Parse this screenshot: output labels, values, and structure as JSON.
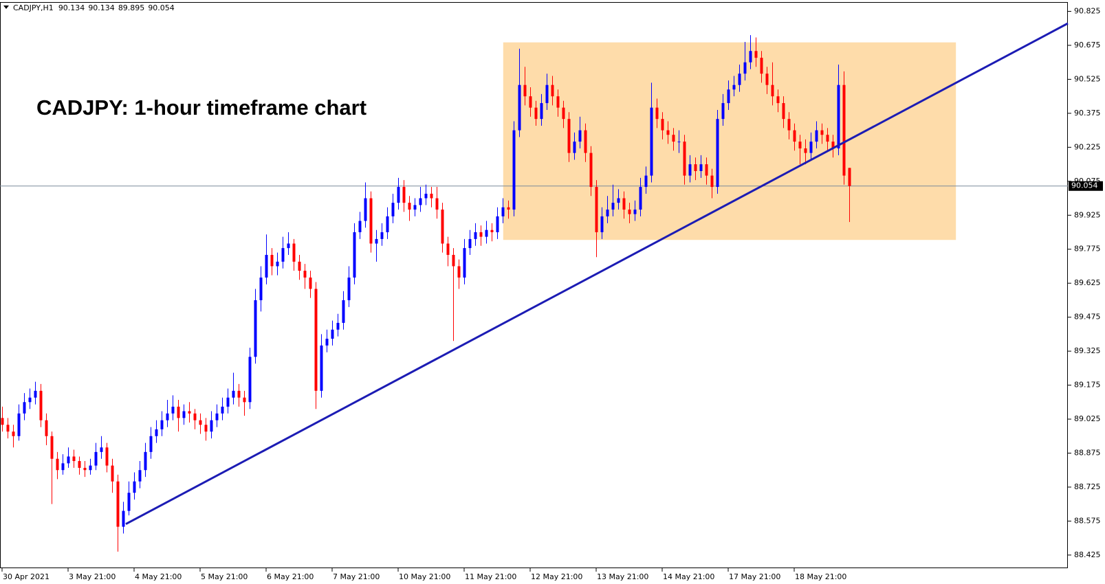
{
  "chart_data": {
    "type": "candlestick",
    "symbol": "CADJPY,H1",
    "ohlc": [
      90.134,
      90.134,
      89.895,
      90.054
    ],
    "annotation": "CADJPY: 1-hour timeframe chart",
    "up_color": "#0000ff",
    "down_color": "#ff0000",
    "trendline_color": "#1c1cb4",
    "box_color": "#fedcaa",
    "price_line_color": "#7a8a9a",
    "last_price": 90.054,
    "xlim": [
      -0.375,
      193.75
    ],
    "xticks": [
      {
        "value": 0,
        "label": "30 Apr 2021"
      },
      {
        "value": 12,
        "label": "3 May 21:00"
      },
      {
        "value": 24,
        "label": "4 May 21:00"
      },
      {
        "value": 36,
        "label": "5 May 21:00"
      },
      {
        "value": 48,
        "label": "6 May 21:00"
      },
      {
        "value": 60,
        "label": "7 May 21:00"
      },
      {
        "value": 72,
        "label": "10 May 21:00"
      },
      {
        "value": 84,
        "label": "11 May 21:00"
      },
      {
        "value": 96,
        "label": "12 May 21:00"
      },
      {
        "value": 108,
        "label": "13 May 21:00"
      },
      {
        "value": 120,
        "label": "14 May 21:00"
      },
      {
        "value": 132,
        "label": "17 May 21:00"
      },
      {
        "value": 144,
        "label": "18 May 21:00"
      }
    ],
    "ylim": [
      88.367,
      90.866
    ],
    "yticks": [
      88.425,
      88.575,
      88.725,
      88.875,
      89.025,
      89.175,
      89.325,
      89.475,
      89.625,
      89.775,
      89.925,
      90.075,
      90.225,
      90.375,
      90.525,
      90.675,
      90.825
    ],
    "trendline": {
      "x": [
        22.5,
        193.75
      ],
      "y": [
        88.562,
        90.772
      ]
    },
    "box": {
      "x": [
        91.1,
        173.4
      ],
      "y": [
        89.816,
        90.688
      ]
    },
    "candles": [
      [
        89.03,
        89.08,
        88.97,
        89.0
      ],
      [
        89.0,
        89.03,
        88.94,
        88.97
      ],
      [
        88.97,
        89.0,
        88.9,
        88.95
      ],
      [
        88.95,
        89.09,
        88.93,
        89.05
      ],
      [
        89.05,
        89.14,
        89.02,
        89.1
      ],
      [
        89.1,
        89.16,
        89.07,
        89.12
      ],
      [
        89.12,
        89.19,
        89.09,
        89.15
      ],
      [
        89.15,
        89.18,
        88.99,
        89.02
      ],
      [
        89.02,
        89.05,
        88.91,
        88.95
      ],
      [
        88.95,
        88.97,
        88.65,
        88.85
      ],
      [
        88.85,
        88.88,
        88.76,
        88.8
      ],
      [
        88.8,
        88.87,
        88.78,
        88.83
      ],
      [
        88.83,
        88.9,
        88.81,
        88.86
      ],
      [
        88.86,
        88.89,
        88.81,
        88.84
      ],
      [
        88.84,
        88.86,
        88.78,
        88.81
      ],
      [
        88.81,
        88.84,
        88.77,
        88.8
      ],
      [
        88.8,
        88.85,
        88.78,
        88.82
      ],
      [
        88.82,
        88.92,
        88.8,
        88.88
      ],
      [
        88.88,
        88.95,
        88.85,
        88.9
      ],
      [
        88.9,
        88.92,
        88.79,
        88.82
      ],
      [
        88.82,
        88.85,
        88.7,
        88.75
      ],
      [
        88.75,
        88.78,
        88.44,
        88.55
      ],
      [
        88.55,
        88.66,
        88.52,
        88.62
      ],
      [
        88.62,
        88.75,
        88.6,
        88.7
      ],
      [
        88.7,
        88.79,
        88.67,
        88.75
      ],
      [
        88.75,
        88.84,
        88.72,
        88.8
      ],
      [
        88.8,
        88.92,
        88.77,
        88.88
      ],
      [
        88.88,
        88.99,
        88.85,
        88.95
      ],
      [
        88.95,
        89.02,
        88.92,
        88.98
      ],
      [
        88.98,
        89.06,
        88.95,
        89.02
      ],
      [
        89.02,
        89.11,
        88.99,
        89.05
      ],
      [
        89.05,
        89.13,
        89.02,
        89.08
      ],
      [
        89.08,
        89.11,
        88.97,
        89.03
      ],
      [
        89.03,
        89.09,
        89.0,
        89.06
      ],
      [
        89.06,
        89.1,
        89.01,
        89.05
      ],
      [
        89.05,
        89.07,
        88.98,
        89.02
      ],
      [
        89.02,
        89.05,
        88.96,
        89.0
      ],
      [
        89.0,
        89.03,
        88.93,
        88.97
      ],
      [
        88.97,
        89.06,
        88.94,
        89.02
      ],
      [
        89.02,
        89.09,
        88.99,
        89.05
      ],
      [
        89.05,
        89.12,
        89.02,
        89.08
      ],
      [
        89.08,
        89.16,
        89.05,
        89.12
      ],
      [
        89.12,
        89.23,
        89.09,
        89.15
      ],
      [
        89.15,
        89.18,
        89.08,
        89.12
      ],
      [
        89.12,
        89.15,
        89.04,
        89.1
      ],
      [
        89.1,
        89.34,
        89.07,
        89.3
      ],
      [
        89.3,
        89.6,
        89.27,
        89.55
      ],
      [
        89.55,
        89.7,
        89.5,
        89.65
      ],
      [
        89.65,
        89.84,
        89.62,
        89.75
      ],
      [
        89.75,
        89.78,
        89.66,
        89.7
      ],
      [
        89.7,
        89.76,
        89.66,
        89.72
      ],
      [
        89.72,
        89.83,
        89.69,
        89.78
      ],
      [
        89.78,
        89.85,
        89.75,
        89.8
      ],
      [
        89.8,
        89.82,
        89.68,
        89.72
      ],
      [
        89.72,
        89.75,
        89.64,
        89.68
      ],
      [
        89.68,
        89.71,
        89.6,
        89.65
      ],
      [
        89.65,
        89.68,
        89.56,
        89.6
      ],
      [
        89.6,
        89.63,
        89.07,
        89.15
      ],
      [
        89.15,
        89.4,
        89.12,
        89.35
      ],
      [
        89.35,
        89.42,
        89.32,
        89.38
      ],
      [
        89.38,
        89.46,
        89.35,
        89.42
      ],
      [
        89.42,
        89.49,
        89.39,
        89.45
      ],
      [
        89.45,
        89.59,
        89.42,
        89.55
      ],
      [
        89.55,
        89.7,
        89.52,
        89.65
      ],
      [
        89.65,
        89.89,
        89.62,
        89.85
      ],
      [
        89.85,
        89.94,
        89.82,
        89.9
      ],
      [
        89.9,
        90.07,
        89.87,
        90.0
      ],
      [
        90.0,
        90.03,
        89.76,
        89.8
      ],
      [
        89.8,
        89.86,
        89.72,
        89.82
      ],
      [
        89.82,
        89.89,
        89.79,
        89.85
      ],
      [
        89.85,
        89.96,
        89.82,
        89.92
      ],
      [
        89.92,
        90.02,
        89.89,
        89.98
      ],
      [
        89.98,
        90.09,
        89.95,
        90.05
      ],
      [
        90.05,
        90.08,
        89.94,
        89.98
      ],
      [
        89.98,
        90.01,
        89.9,
        89.95
      ],
      [
        89.95,
        90.0,
        89.92,
        89.97
      ],
      [
        89.97,
        90.05,
        89.94,
        90.0
      ],
      [
        90.0,
        90.06,
        89.97,
        90.02
      ],
      [
        90.02,
        90.05,
        89.96,
        90.0
      ],
      [
        90.0,
        90.05,
        89.91,
        89.95
      ],
      [
        89.95,
        89.98,
        89.76,
        89.8
      ],
      [
        89.8,
        89.83,
        89.7,
        89.75
      ],
      [
        89.75,
        89.78,
        89.37,
        89.7
      ],
      [
        89.7,
        89.73,
        89.6,
        89.65
      ],
      [
        89.65,
        89.82,
        89.62,
        89.78
      ],
      [
        89.78,
        89.86,
        89.75,
        89.82
      ],
      [
        89.82,
        89.89,
        89.79,
        89.85
      ],
      [
        89.85,
        89.88,
        89.79,
        89.83
      ],
      [
        89.83,
        89.9,
        89.8,
        89.86
      ],
      [
        89.86,
        89.89,
        89.81,
        89.85
      ],
      [
        89.85,
        89.96,
        89.82,
        89.92
      ],
      [
        89.92,
        90.0,
        89.89,
        89.96
      ],
      [
        89.96,
        89.99,
        89.91,
        89.95
      ],
      [
        89.95,
        90.34,
        89.92,
        90.3
      ],
      [
        90.3,
        90.66,
        90.27,
        90.5
      ],
      [
        90.5,
        90.58,
        90.41,
        90.45
      ],
      [
        90.45,
        90.49,
        90.36,
        90.4
      ],
      [
        90.4,
        90.43,
        90.32,
        90.35
      ],
      [
        90.35,
        90.46,
        90.32,
        90.42
      ],
      [
        90.42,
        90.55,
        90.39,
        90.5
      ],
      [
        90.5,
        90.54,
        90.41,
        90.45
      ],
      [
        90.45,
        90.48,
        90.36,
        90.4
      ],
      [
        90.4,
        90.43,
        90.31,
        90.35
      ],
      [
        90.35,
        90.38,
        90.16,
        90.2
      ],
      [
        90.2,
        90.29,
        90.17,
        90.25
      ],
      [
        90.25,
        90.36,
        90.22,
        90.3
      ],
      [
        90.3,
        90.33,
        90.16,
        90.2
      ],
      [
        90.2,
        90.23,
        90.01,
        90.05
      ],
      [
        90.05,
        90.08,
        89.74,
        89.85
      ],
      [
        89.85,
        89.96,
        89.82,
        89.92
      ],
      [
        89.92,
        90.01,
        89.89,
        89.95
      ],
      [
        89.95,
        90.06,
        89.92,
        89.98
      ],
      [
        89.98,
        90.04,
        89.95,
        90.0
      ],
      [
        90.0,
        90.03,
        89.91,
        89.95
      ],
      [
        89.95,
        89.98,
        89.89,
        89.93
      ],
      [
        89.93,
        89.99,
        89.9,
        89.95
      ],
      [
        89.95,
        90.09,
        89.92,
        90.05
      ],
      [
        90.05,
        90.14,
        90.02,
        90.1
      ],
      [
        90.1,
        90.51,
        90.07,
        90.4
      ],
      [
        90.4,
        90.44,
        90.31,
        90.35
      ],
      [
        90.35,
        90.38,
        90.26,
        90.3
      ],
      [
        90.3,
        90.34,
        90.24,
        90.28
      ],
      [
        90.28,
        90.31,
        90.21,
        90.25
      ],
      [
        90.25,
        90.3,
        90.2,
        90.25
      ],
      [
        90.25,
        90.28,
        90.06,
        90.1
      ],
      [
        90.1,
        90.19,
        90.07,
        90.15
      ],
      [
        90.15,
        90.18,
        90.08,
        90.12
      ],
      [
        90.12,
        90.19,
        90.09,
        90.15
      ],
      [
        90.15,
        90.18,
        90.06,
        90.1
      ],
      [
        90.1,
        90.13,
        90.0,
        90.05
      ],
      [
        90.05,
        90.39,
        90.02,
        90.35
      ],
      [
        90.35,
        90.46,
        90.32,
        90.42
      ],
      [
        90.42,
        90.52,
        90.39,
        90.48
      ],
      [
        90.48,
        90.54,
        90.45,
        90.5
      ],
      [
        90.5,
        90.59,
        90.47,
        90.55
      ],
      [
        90.55,
        90.69,
        90.52,
        90.6
      ],
      [
        90.6,
        90.72,
        90.57,
        90.65
      ],
      [
        90.65,
        90.71,
        90.58,
        90.62
      ],
      [
        90.62,
        90.65,
        90.51,
        90.55
      ],
      [
        90.55,
        90.58,
        90.46,
        90.5
      ],
      [
        90.5,
        90.6,
        90.41,
        90.45
      ],
      [
        90.45,
        90.48,
        90.38,
        90.42
      ],
      [
        90.42,
        90.45,
        90.31,
        90.35
      ],
      [
        90.35,
        90.38,
        90.26,
        90.3
      ],
      [
        90.3,
        90.33,
        90.21,
        90.25
      ],
      [
        90.25,
        90.28,
        90.15,
        90.22
      ],
      [
        90.22,
        90.26,
        90.15,
        90.2
      ],
      [
        90.2,
        90.29,
        90.17,
        90.25
      ],
      [
        90.25,
        90.34,
        90.22,
        90.3
      ],
      [
        90.3,
        90.33,
        90.24,
        90.28
      ],
      [
        90.28,
        90.31,
        90.21,
        90.25
      ],
      [
        90.25,
        90.28,
        90.18,
        90.22
      ],
      [
        90.22,
        90.59,
        90.19,
        90.5
      ],
      [
        90.5,
        90.56,
        90.06,
        90.1
      ],
      [
        90.134,
        90.134,
        89.895,
        90.054
      ]
    ]
  }
}
